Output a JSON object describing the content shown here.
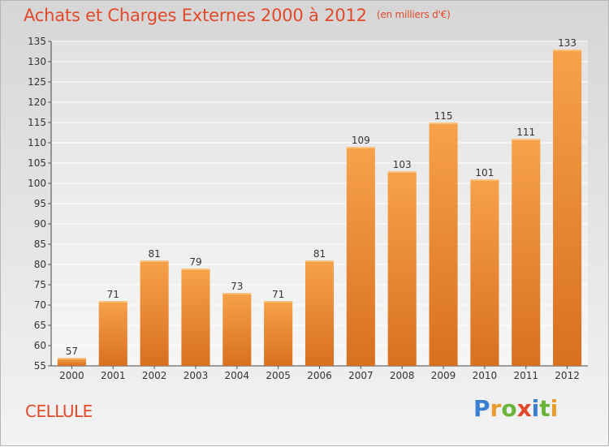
{
  "chart_data": {
    "type": "bar",
    "title": "Achats et Charges Externes 2000 à 2012",
    "unit_label": "(en milliers d'€)",
    "categories": [
      "2000",
      "2001",
      "2002",
      "2003",
      "2004",
      "2005",
      "2006",
      "2007",
      "2008",
      "2009",
      "2010",
      "2011",
      "2012"
    ],
    "values": [
      57,
      71,
      81,
      79,
      73,
      71,
      81,
      109,
      103,
      115,
      101,
      111,
      133
    ],
    "ylim": [
      55,
      135
    ],
    "yticks": [
      55,
      60,
      65,
      70,
      75,
      80,
      85,
      90,
      95,
      100,
      105,
      110,
      115,
      120,
      125,
      130,
      135
    ],
    "xlabel": "",
    "ylabel": "",
    "grid": true,
    "bar_color": "#f0913a"
  },
  "footer": {
    "commune": "CELLULE",
    "logo": {
      "letters": [
        "P",
        "r",
        "o",
        "x",
        "i",
        "t",
        "i"
      ],
      "colors": [
        "#3a7fd0",
        "#e89b2e",
        "#6bb43c",
        "#e2482a",
        "#3a7fd0",
        "#6bb43c",
        "#e89b2e"
      ]
    }
  }
}
